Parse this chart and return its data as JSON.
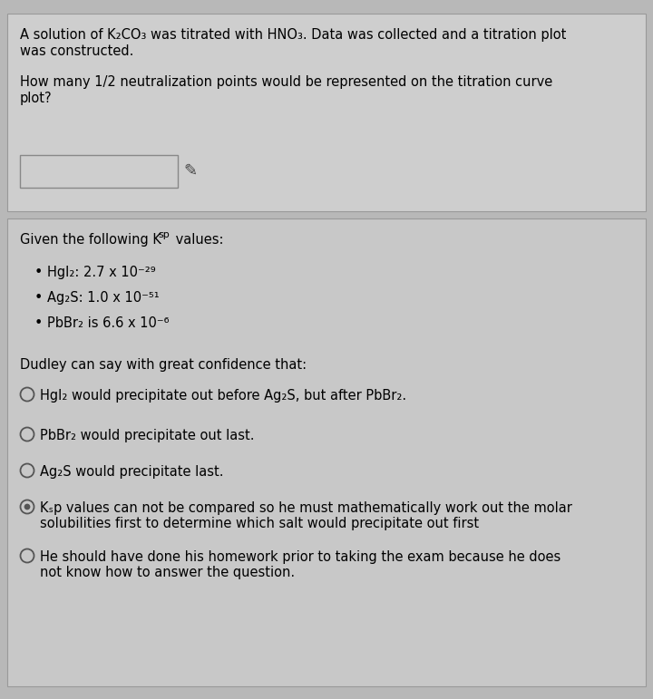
{
  "bg_color": "#b8b8b8",
  "box1_bg": "#cecece",
  "box2_bg": "#c8c8c8",
  "title_line1": "A solution of K₂CO₃ was titrated with HNO₃. Data was collected and a titration plot",
  "title_line2": "was constructed.",
  "question_line1": "How many 1/2 neutralization points would be represented on the titration curve",
  "question_line2": "plot?",
  "ksp_intro_main": "Given the following K",
  "ksp_intro_sub": "sp",
  "ksp_intro_end": " values:",
  "bullet1": "HgI₂: 2.7 x 10⁻²⁹",
  "bullet2": "Ag₂S: 1.0 x 10⁻⁵¹",
  "bullet3": "PbBr₂ is 6.6 x 10⁻⁶",
  "dudley": "Dudley can say with great confidence that:",
  "opt1_line1": "HgI₂ would precipitate out before Ag₂S, but after PbBr₂.",
  "opt2_line1": "PbBr₂ would precipitate out last.",
  "opt3_line1": "Ag₂S would precipitate last.",
  "opt4_line1": "Kₛp values can not be compared so he must mathematically work out the molar",
  "opt4_line2": "solubilities first to determine which salt would precipitate out first",
  "opt5_line1": "He should have done his homework prior to taking the exam because he does",
  "opt5_line2": "not know how to answer the question.",
  "selected_option": 3,
  "font_size": 10.5,
  "font_size_sub": 8
}
